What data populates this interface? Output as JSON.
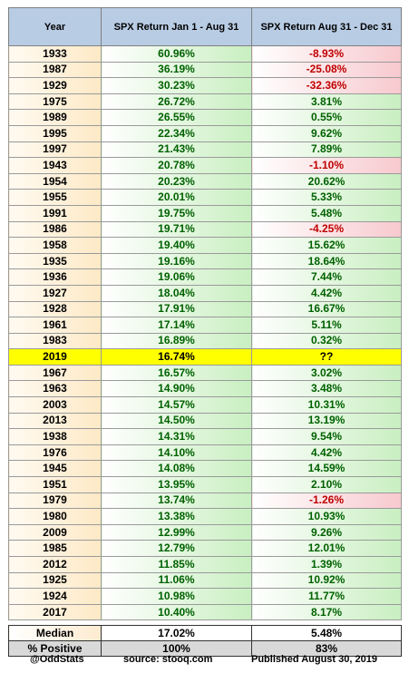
{
  "header": {
    "col_year": "Year",
    "col_jan_aug": "SPX Return Jan 1 - Aug 31",
    "col_aug_dec": "SPX Return Aug 31 - Dec 31"
  },
  "rows": [
    {
      "year": "1933",
      "jan_aug": "60.96%",
      "aug_dec": "-8.93%"
    },
    {
      "year": "1987",
      "jan_aug": "36.19%",
      "aug_dec": "-25.08%"
    },
    {
      "year": "1929",
      "jan_aug": "30.23%",
      "aug_dec": "-32.36%"
    },
    {
      "year": "1975",
      "jan_aug": "26.72%",
      "aug_dec": "3.81%"
    },
    {
      "year": "1989",
      "jan_aug": "26.55%",
      "aug_dec": "0.55%"
    },
    {
      "year": "1995",
      "jan_aug": "22.34%",
      "aug_dec": "9.62%"
    },
    {
      "year": "1997",
      "jan_aug": "21.43%",
      "aug_dec": "7.89%"
    },
    {
      "year": "1943",
      "jan_aug": "20.78%",
      "aug_dec": "-1.10%"
    },
    {
      "year": "1954",
      "jan_aug": "20.23%",
      "aug_dec": "20.62%"
    },
    {
      "year": "1955",
      "jan_aug": "20.01%",
      "aug_dec": "5.33%"
    },
    {
      "year": "1991",
      "jan_aug": "19.75%",
      "aug_dec": "5.48%"
    },
    {
      "year": "1986",
      "jan_aug": "19.71%",
      "aug_dec": "-4.25%"
    },
    {
      "year": "1958",
      "jan_aug": "19.40%",
      "aug_dec": "15.62%"
    },
    {
      "year": "1935",
      "jan_aug": "19.16%",
      "aug_dec": "18.64%"
    },
    {
      "year": "1936",
      "jan_aug": "19.06%",
      "aug_dec": "7.44%"
    },
    {
      "year": "1927",
      "jan_aug": "18.04%",
      "aug_dec": "4.42%"
    },
    {
      "year": "1928",
      "jan_aug": "17.91%",
      "aug_dec": "16.67%"
    },
    {
      "year": "1961",
      "jan_aug": "17.14%",
      "aug_dec": "5.11%"
    },
    {
      "year": "1983",
      "jan_aug": "16.89%",
      "aug_dec": "0.32%"
    },
    {
      "year": "2019",
      "jan_aug": "16.74%",
      "aug_dec": "??",
      "highlight": true
    },
    {
      "year": "1967",
      "jan_aug": "16.57%",
      "aug_dec": "3.02%"
    },
    {
      "year": "1963",
      "jan_aug": "14.90%",
      "aug_dec": "3.48%"
    },
    {
      "year": "2003",
      "jan_aug": "14.57%",
      "aug_dec": "10.31%"
    },
    {
      "year": "2013",
      "jan_aug": "14.50%",
      "aug_dec": "13.19%"
    },
    {
      "year": "1938",
      "jan_aug": "14.31%",
      "aug_dec": "9.54%"
    },
    {
      "year": "1976",
      "jan_aug": "14.10%",
      "aug_dec": "4.42%"
    },
    {
      "year": "1945",
      "jan_aug": "14.08%",
      "aug_dec": "14.59%"
    },
    {
      "year": "1951",
      "jan_aug": "13.95%",
      "aug_dec": "2.10%"
    },
    {
      "year": "1979",
      "jan_aug": "13.74%",
      "aug_dec": "-1.26%"
    },
    {
      "year": "1980",
      "jan_aug": "13.38%",
      "aug_dec": "10.93%"
    },
    {
      "year": "2009",
      "jan_aug": "12.99%",
      "aug_dec": "9.26%"
    },
    {
      "year": "1985",
      "jan_aug": "12.79%",
      "aug_dec": "12.01%"
    },
    {
      "year": "2012",
      "jan_aug": "11.85%",
      "aug_dec": "1.39%"
    },
    {
      "year": "1925",
      "jan_aug": "11.06%",
      "aug_dec": "10.92%"
    },
    {
      "year": "1924",
      "jan_aug": "10.98%",
      "aug_dec": "11.77%"
    },
    {
      "year": "2017",
      "jan_aug": "10.40%",
      "aug_dec": "8.17%"
    }
  ],
  "summary": [
    {
      "label": "Median",
      "jan_aug": "17.02%",
      "aug_dec": "5.48%"
    },
    {
      "label": "% Positive",
      "jan_aug": "100%",
      "aug_dec": "83%"
    }
  ],
  "footer": {
    "handle": "@OddStats",
    "source": "source: stooq.com",
    "published": "Published August 30, 2019"
  },
  "colors": {
    "header_bg": "#b8cce4",
    "positive_text": "#006100",
    "negative_text": "#c00000",
    "highlight": "#ffff00"
  }
}
